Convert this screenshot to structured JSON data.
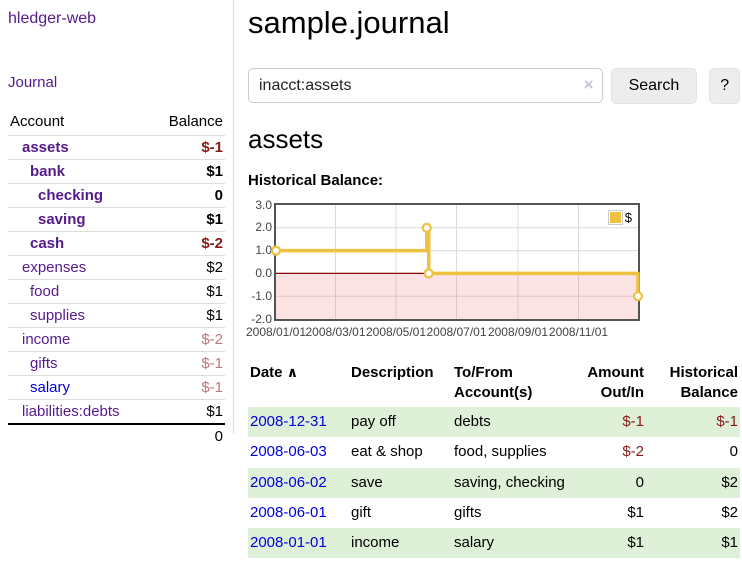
{
  "brand": {
    "title": "hledger-web"
  },
  "nav": {
    "journal": "Journal"
  },
  "sidebar": {
    "columns": {
      "account": "Account",
      "balance": "Balance"
    },
    "accounts": [
      {
        "name": "assets",
        "balance": "$-1"
      },
      {
        "name": "bank",
        "balance": "$1"
      },
      {
        "name": "checking",
        "balance": "0"
      },
      {
        "name": "saving",
        "balance": "$1"
      },
      {
        "name": "cash",
        "balance": "$-2"
      },
      {
        "name": "expenses",
        "balance": "$2"
      },
      {
        "name": "food",
        "balance": "$1"
      },
      {
        "name": "supplies",
        "balance": "$1"
      },
      {
        "name": "income",
        "balance": "$-2"
      },
      {
        "name": "gifts",
        "balance": "$-1"
      },
      {
        "name": "salary",
        "balance": "$-1"
      },
      {
        "name": "liabilities:debts",
        "balance": "$1"
      }
    ],
    "total": "0"
  },
  "main": {
    "title": "sample.journal",
    "search": {
      "value": "inacct:assets",
      "clear": "×",
      "button": "Search",
      "help": "?"
    },
    "account_heading": "assets",
    "chart_heading": "Historical Balance:"
  },
  "chart_data": {
    "type": "line",
    "step": true,
    "title": "Historical Balance",
    "legend": "$",
    "legend_position": "top-right",
    "grid": true,
    "series": [
      {
        "name": "$",
        "color": "#edc240",
        "points": [
          [
            "2008-01-01",
            1
          ],
          [
            "2008-06-01",
            2
          ],
          [
            "2008-06-03",
            0
          ],
          [
            "2008-12-31",
            -1
          ]
        ]
      }
    ],
    "xrange": [
      "2008-01-01",
      "2008-12-31"
    ],
    "ylim": [
      -2,
      3
    ],
    "yticks": [
      3,
      2,
      1,
      0,
      -1,
      -2
    ],
    "xticks": [
      "2008/01/01",
      "2008/03/01",
      "2008/05/01",
      "2008/07/01",
      "2008/09/01",
      "2008/11/01"
    ],
    "zero_line_color": "#8b0000",
    "negative_region_color": "rgba(235,80,80,0.16)"
  },
  "register": {
    "sort_icon": "∧",
    "columns": [
      "Date",
      "Description",
      "To/From Account(s)",
      "Amount Out/In",
      "Historical Balance"
    ],
    "rows": [
      {
        "date": "2008-12-31",
        "description": "pay off",
        "accounts": "debts",
        "amount": "$-1",
        "balance": "$-1"
      },
      {
        "date": "2008-06-03",
        "description": "eat & shop",
        "accounts": "food, supplies",
        "amount": "$-2",
        "balance": "0"
      },
      {
        "date": "2008-06-02",
        "description": "save",
        "accounts": "saving, checking",
        "amount": "0",
        "balance": "$2"
      },
      {
        "date": "2008-06-01",
        "description": "gift",
        "accounts": "gifts",
        "amount": "$1",
        "balance": "$2"
      },
      {
        "date": "2008-01-01",
        "description": "income",
        "accounts": "salary",
        "amount": "$1",
        "balance": "$1"
      }
    ]
  }
}
